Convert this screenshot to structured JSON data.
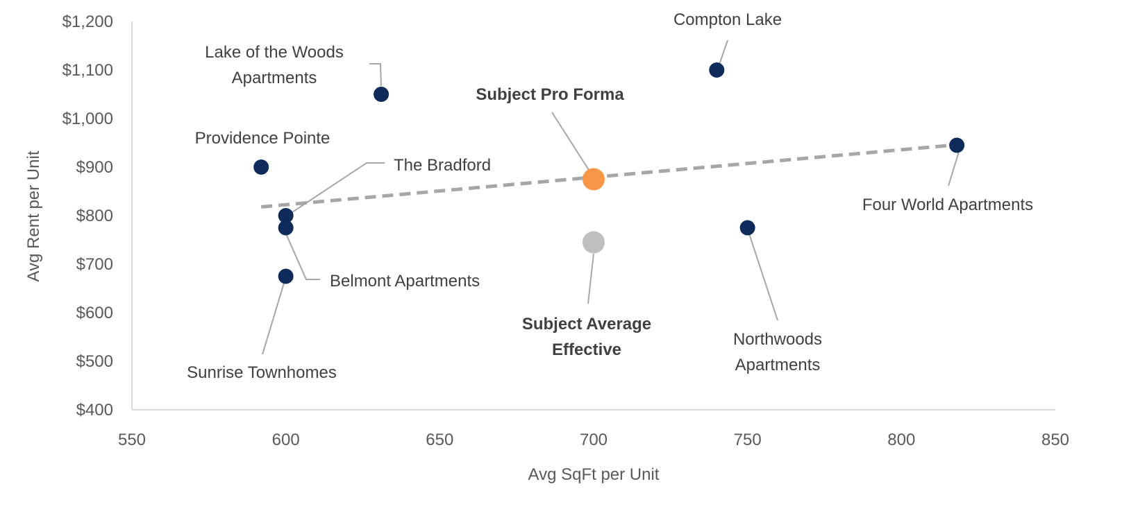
{
  "chart_data": {
    "type": "scatter",
    "title": "",
    "xlabel": "Avg SqFt per Unit",
    "ylabel": "Avg Rent per Unit",
    "xlim": [
      550,
      850
    ],
    "ylim": [
      400,
      1200
    ],
    "x_ticks": [
      550,
      600,
      650,
      700,
      750,
      800,
      850
    ],
    "y_ticks": [
      400,
      500,
      600,
      700,
      800,
      900,
      1000,
      1100,
      1200
    ],
    "y_tick_labels": [
      "$400",
      "$500",
      "$600",
      "$700",
      "$800",
      "$900",
      "$1,000",
      "$1,100",
      "$1,200"
    ],
    "grid": false,
    "legend": "none",
    "colors": {
      "comp": "#0f2b5b",
      "pro_forma": "#f79646",
      "average": "#bfbfbf",
      "trendline": "#a6a6a6"
    },
    "points": [
      {
        "label": [
          "Lake of the Woods",
          "Apartments"
        ],
        "x": 631,
        "y": 1050,
        "kind": "comp",
        "bold": false
      },
      {
        "label": [
          "Compton Lake"
        ],
        "x": 740,
        "y": 1100,
        "kind": "comp",
        "bold": false
      },
      {
        "label": [
          "Providence Pointe"
        ],
        "x": 592,
        "y": 900,
        "kind": "comp",
        "bold": false
      },
      {
        "label": [
          "The Bradford"
        ],
        "x": 600,
        "y": 800,
        "kind": "comp",
        "bold": false
      },
      {
        "label": [
          "Belmont Apartments"
        ],
        "x": 600,
        "y": 775,
        "kind": "comp",
        "bold": false
      },
      {
        "label": [
          "Sunrise Townhomes"
        ],
        "x": 600,
        "y": 675,
        "kind": "comp",
        "bold": false
      },
      {
        "label": [
          "Four World Apartments"
        ],
        "x": 818,
        "y": 945,
        "kind": "comp",
        "bold": false
      },
      {
        "label": [
          "Northwoods",
          "Apartments"
        ],
        "x": 750,
        "y": 775,
        "kind": "comp",
        "bold": false
      },
      {
        "label": [
          "Subject Pro Forma"
        ],
        "x": 700,
        "y": 875,
        "kind": "pro_forma",
        "bold": true
      },
      {
        "label": [
          "Subject Average",
          "Effective"
        ],
        "x": 700,
        "y": 745,
        "kind": "average",
        "bold": true
      }
    ],
    "trendline": {
      "x": [
        592,
        818
      ],
      "y": [
        818,
        946
      ],
      "style": "dashed"
    }
  }
}
